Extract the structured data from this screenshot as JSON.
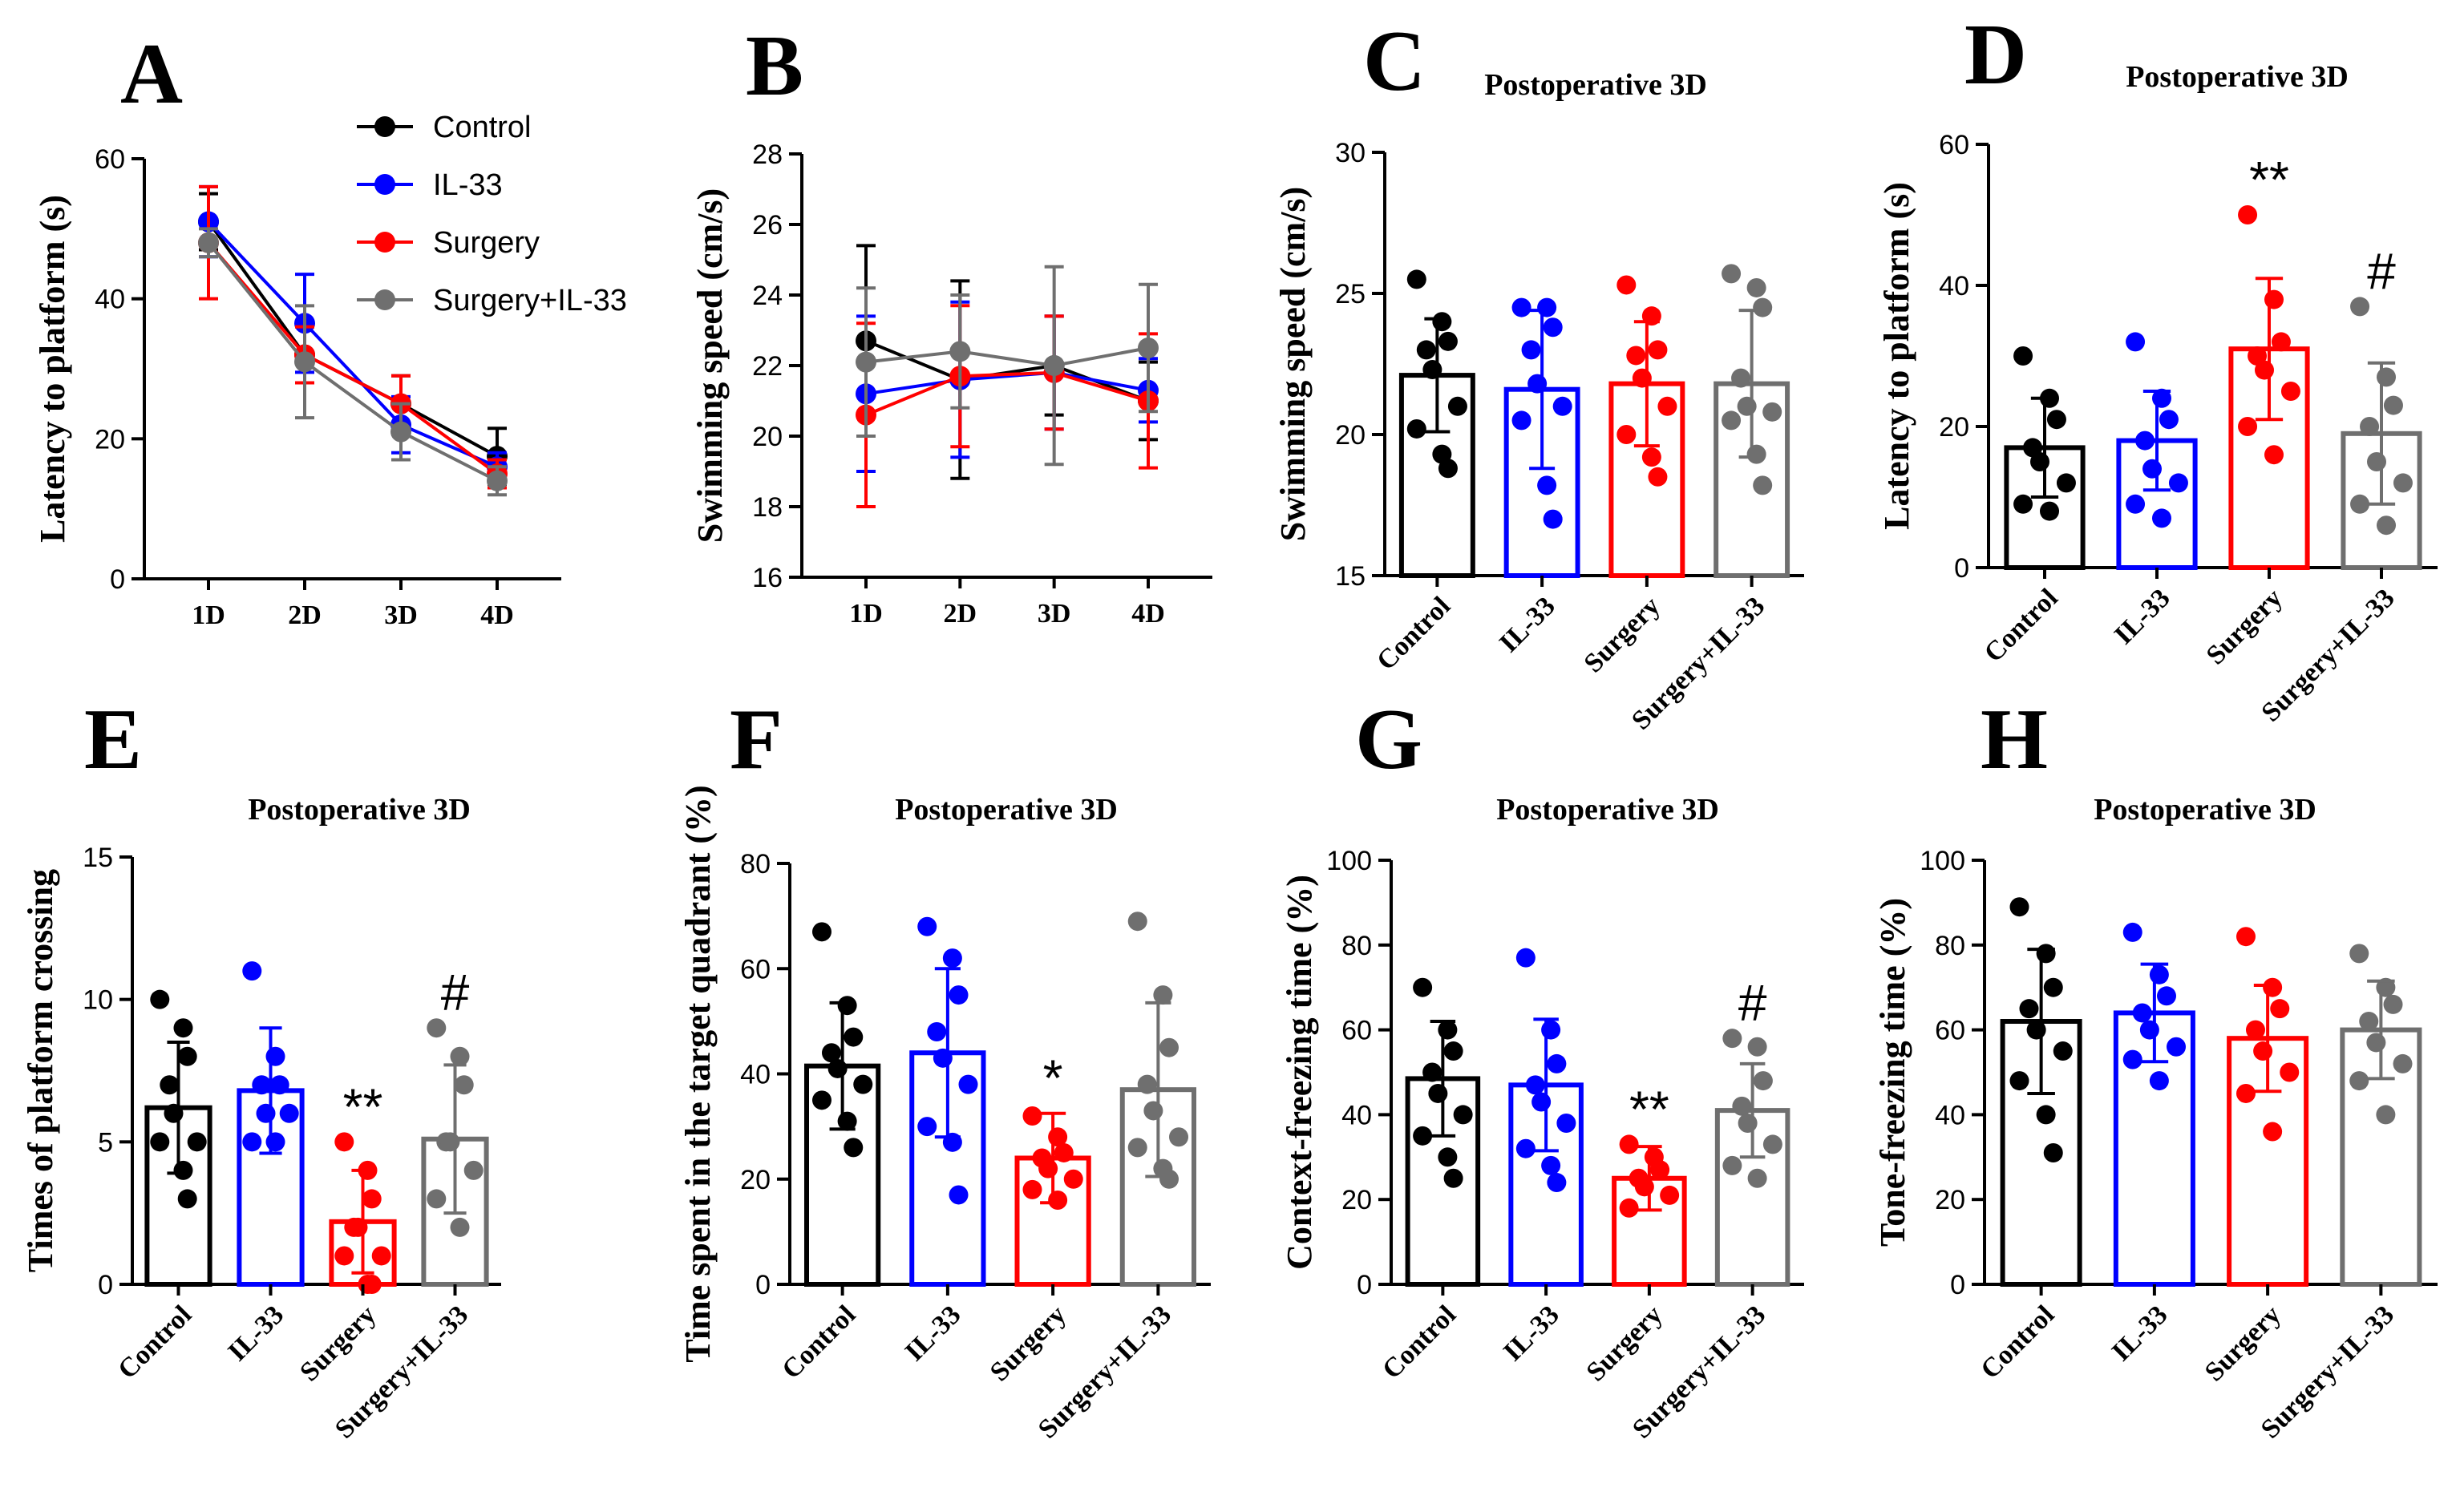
{
  "groups": [
    "Control",
    "IL-33",
    "Surgery",
    "Surgery+IL-33"
  ],
  "colors": {
    "Control": "#000000",
    "IL-33": "#0000ff",
    "Surgery": "#ff0000",
    "Surgery+IL-33": "#6f6f6f"
  },
  "chart_data": [
    {
      "panel": "A",
      "type": "line",
      "title": "",
      "xlabel": "",
      "ylabel": "Latency to platform (s)",
      "categories": [
        "1D",
        "2D",
        "3D",
        "4D"
      ],
      "ylim": [
        0,
        60
      ],
      "yticks": [
        0,
        20,
        40,
        60
      ],
      "series": [
        {
          "name": "Control",
          "values": [
            51,
            32,
            25,
            17.5
          ],
          "err": [
            4,
            4,
            4,
            4
          ]
        },
        {
          "name": "IL-33",
          "values": [
            51,
            36.5,
            22,
            16
          ],
          "err": [
            5,
            7,
            4,
            2
          ]
        },
        {
          "name": "Surgery",
          "values": [
            48,
            32,
            25,
            15
          ],
          "err": [
            8,
            4,
            4,
            2
          ]
        },
        {
          "name": "Surgery+IL-33",
          "values": [
            48,
            31,
            21,
            14
          ],
          "err": [
            2,
            8,
            4,
            2
          ]
        }
      ],
      "legend": "top-right"
    },
    {
      "panel": "B",
      "type": "line",
      "title": "",
      "xlabel": "",
      "ylabel": "Swimming speed (cm/s)",
      "categories": [
        "1D",
        "2D",
        "3D",
        "4D"
      ],
      "ylim": [
        16,
        28
      ],
      "yticks": [
        16,
        18,
        20,
        22,
        24,
        26,
        28
      ],
      "series": [
        {
          "name": "Control",
          "values": [
            22.7,
            21.6,
            22.0,
            21.0
          ],
          "err": [
            2.7,
            2.8,
            1.4,
            1.1
          ]
        },
        {
          "name": "IL-33",
          "values": [
            21.2,
            21.6,
            21.8,
            21.3
          ],
          "err": [
            2.2,
            2.2,
            1.6,
            0.9
          ]
        },
        {
          "name": "Surgery",
          "values": [
            20.6,
            21.7,
            21.8,
            21.0
          ],
          "err": [
            2.6,
            2.0,
            1.6,
            1.9
          ]
        },
        {
          "name": "Surgery+IL-33",
          "values": [
            22.1,
            22.4,
            22.0,
            22.5
          ],
          "err": [
            2.1,
            1.6,
            2.8,
            1.8
          ]
        }
      ]
    },
    {
      "panel": "C",
      "type": "bar",
      "title": "Postoperative 3D",
      "ylabel": "Swimming speed (cm/s)",
      "categories": [
        "Control",
        "IL-33",
        "Surgery",
        "Surgery+IL-33"
      ],
      "ylim": [
        15,
        30
      ],
      "yticks": [
        15,
        20,
        25,
        30
      ],
      "values": [
        22.1,
        21.6,
        21.8,
        21.8
      ],
      "err": [
        2.0,
        2.8,
        2.2,
        2.6
      ],
      "points": [
        [
          25.5,
          24,
          23.3,
          23,
          22.3,
          21,
          20.2,
          19.3,
          18.8
        ],
        [
          24.5,
          24.5,
          23.8,
          23,
          21.8,
          21,
          20.5,
          18.2,
          17
        ],
        [
          25.3,
          24.2,
          23,
          22.8,
          22,
          21,
          20,
          19.2,
          18.5
        ],
        [
          25.7,
          25.2,
          24.5,
          22,
          21,
          20.8,
          20.5,
          19.3,
          18.2
        ]
      ],
      "sig": [
        "",
        "",
        "",
        ""
      ]
    },
    {
      "panel": "D",
      "type": "bar",
      "title": "Postoperative 3D",
      "ylabel": "Latency to platform (s)",
      "categories": [
        "Control",
        "IL-33",
        "Surgery",
        "Surgery+IL-33"
      ],
      "ylim": [
        0,
        60
      ],
      "yticks": [
        0,
        20,
        40,
        60
      ],
      "values": [
        17,
        18,
        31,
        19
      ],
      "err": [
        7,
        7,
        10,
        10
      ],
      "points": [
        [
          30,
          24,
          21,
          17,
          15,
          12,
          9,
          8
        ],
        [
          32,
          24,
          21,
          18,
          14,
          12,
          9,
          7
        ],
        [
          50,
          38,
          32,
          30,
          28,
          25,
          20,
          16
        ],
        [
          37,
          27,
          23,
          20,
          15,
          12,
          9,
          6
        ]
      ],
      "sig": [
        "",
        "",
        "**",
        "#"
      ]
    },
    {
      "panel": "E",
      "type": "bar",
      "title": "Postoperative 3D",
      "ylabel": "Times of platform crossing",
      "categories": [
        "Control",
        "IL-33",
        "Surgery",
        "Surgery+IL-33"
      ],
      "ylim": [
        0,
        15
      ],
      "yticks": [
        0,
        5,
        10,
        15
      ],
      "values": [
        6.2,
        6.8,
        2.2,
        5.1
      ],
      "err": [
        2.3,
        2.2,
        1.8,
        2.6
      ],
      "points": [
        [
          10,
          9,
          8,
          7,
          6,
          5,
          5,
          4,
          3
        ],
        [
          11,
          8,
          7,
          7,
          6,
          6,
          5,
          5
        ],
        [
          5,
          4,
          3,
          2,
          2,
          1,
          1,
          0,
          0
        ],
        [
          9,
          8,
          7,
          5,
          5,
          4,
          3,
          2
        ]
      ],
      "sig": [
        "",
        "",
        "**",
        "#"
      ]
    },
    {
      "panel": "F",
      "type": "bar",
      "title": "Postoperative 3D",
      "ylabel": "Time spent in the target quadrant (%)",
      "categories": [
        "Control",
        "IL-33",
        "Surgery",
        "Surgery+IL-33"
      ],
      "ylim": [
        0,
        80
      ],
      "yticks": [
        0,
        20,
        40,
        60,
        80
      ],
      "values": [
        41.5,
        44,
        24,
        37
      ],
      "err": [
        12,
        16,
        8.5,
        16.5
      ],
      "points": [
        [
          67,
          53,
          47,
          44,
          41,
          38,
          35,
          31,
          26
        ],
        [
          68,
          62,
          55,
          48,
          43,
          38,
          30,
          27,
          17
        ],
        [
          32,
          28,
          25,
          24,
          22,
          20,
          18,
          16
        ],
        [
          69,
          55,
          45,
          38,
          33,
          28,
          26,
          22,
          20
        ]
      ],
      "sig": [
        "",
        "",
        "*",
        ""
      ]
    },
    {
      "panel": "G",
      "type": "bar",
      "title": "Postoperative 3D",
      "ylabel": "Context-freezing time (%)",
      "categories": [
        "Control",
        "IL-33",
        "Surgery",
        "Surgery+IL-33"
      ],
      "ylim": [
        0,
        100
      ],
      "yticks": [
        0,
        20,
        40,
        60,
        80,
        100
      ],
      "values": [
        48.5,
        47,
        25,
        41
      ],
      "err": [
        13.5,
        15.5,
        7.5,
        11
      ],
      "points": [
        [
          70,
          60,
          55,
          50,
          45,
          40,
          35,
          30,
          25
        ],
        [
          77,
          60,
          52,
          47,
          43,
          38,
          32,
          28,
          24
        ],
        [
          33,
          30,
          27,
          25,
          23,
          21,
          18
        ],
        [
          58,
          56,
          48,
          42,
          38,
          33,
          28,
          25
        ]
      ],
      "sig": [
        "",
        "",
        "**",
        "#"
      ]
    },
    {
      "panel": "H",
      "type": "bar",
      "title": "Postoperative 3D",
      "ylabel": "Tone-freezing time (%)",
      "categories": [
        "Control",
        "IL-33",
        "Surgery",
        "Surgery+IL-33"
      ],
      "ylim": [
        0,
        100
      ],
      "yticks": [
        0,
        20,
        40,
        60,
        80,
        100
      ],
      "values": [
        62,
        64,
        58,
        60
      ],
      "err": [
        17,
        11.5,
        12.5,
        11.5
      ],
      "points": [
        [
          89,
          78,
          70,
          65,
          60,
          55,
          48,
          40,
          31
        ],
        [
          83,
          73,
          68,
          64,
          60,
          56,
          53,
          48
        ],
        [
          82,
          70,
          65,
          60,
          55,
          50,
          45,
          36
        ],
        [
          78,
          70,
          66,
          62,
          57,
          52,
          48,
          40
        ]
      ],
      "sig": [
        "",
        "",
        "",
        ""
      ]
    }
  ]
}
